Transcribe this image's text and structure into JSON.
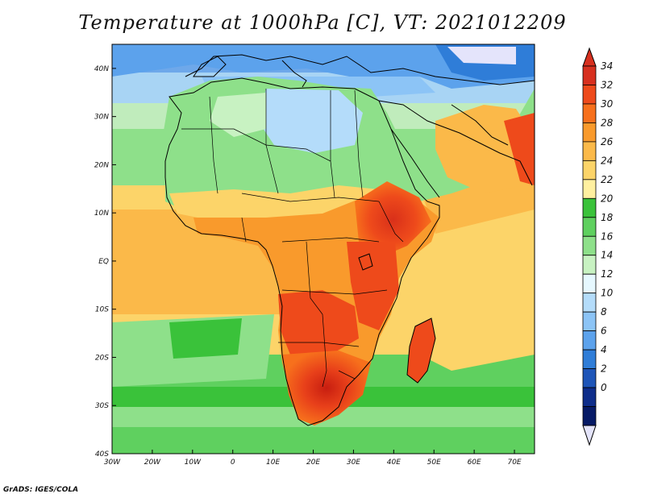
{
  "title": "Temperature at 1000hPa [C], VT: 2021012209",
  "credit": "GrADS: IGES/COLA",
  "map": {
    "variable": "Temperature at 1000hPa",
    "units": "C",
    "valid_time": "2021012209",
    "lon_range": [
      -30,
      75
    ],
    "lat_range": [
      -40,
      45
    ],
    "lon_ticks": [
      "30W",
      "20W",
      "10W",
      "0",
      "10E",
      "20E",
      "30E",
      "40E",
      "50E",
      "60E",
      "70E"
    ],
    "lat_ticks": [
      "40N",
      "30N",
      "20N",
      "10N",
      "EQ",
      "10S",
      "20S",
      "30S",
      "40S"
    ]
  },
  "colorbar": {
    "labels": [
      "34",
      "32",
      "30",
      "28",
      "26",
      "24",
      "22",
      "20",
      "18",
      "16",
      "14",
      "12",
      "10",
      "8",
      "6",
      "4",
      "2",
      "0"
    ],
    "colors": [
      "#d7301f",
      "#ee4a1b",
      "#f7701c",
      "#f99a2c",
      "#fbb949",
      "#fcd469",
      "#fff0a0",
      "#3ac23a",
      "#5fd05f",
      "#8ee08a",
      "#c8f2c2",
      "#e6f8ff",
      "#b4dcfa",
      "#8cc4f6",
      "#5ca2ec",
      "#2f7dd8",
      "#1e55b8",
      "#0e2d8a",
      "#061a66"
    ],
    "over_color": "#d7301f",
    "under_color": "#e4e4fb"
  }
}
